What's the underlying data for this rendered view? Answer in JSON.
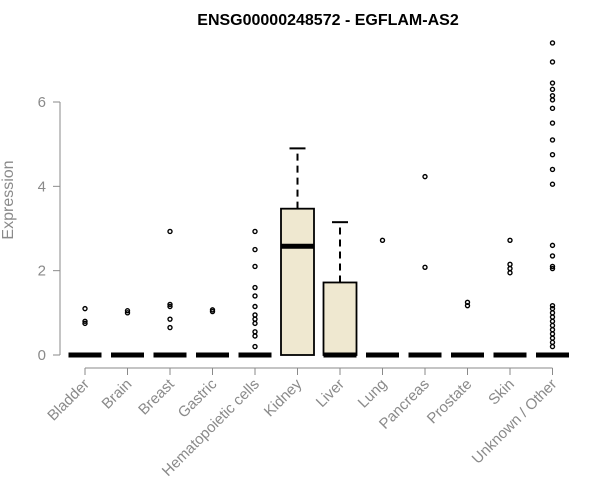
{
  "chart_data": {
    "type": "boxplot",
    "title": "ENSG00000248572 - EGFLAM-AS2",
    "xlabel": "",
    "ylabel": "Expression",
    "ylim": [
      0,
      7.5
    ],
    "yticks": [
      0,
      2,
      4,
      6
    ],
    "grid": false,
    "box_fill": "#efe8d0",
    "categories": [
      "Bladder",
      "Brain",
      "Breast",
      "Gastric",
      "Hematopoietic cells",
      "Kidney",
      "Liver",
      "Lung",
      "Pancreas",
      "Prostate",
      "Skin",
      "Unknown / Other"
    ],
    "boxes": [
      {
        "q1": 0,
        "median": 0,
        "q3": 0,
        "whisker_low": 0,
        "whisker_high": 0,
        "outliers": [
          0.75,
          0.8,
          1.1
        ]
      },
      {
        "q1": 0,
        "median": 0,
        "q3": 0,
        "whisker_low": 0,
        "whisker_high": 0,
        "outliers": [
          1.0,
          1.05
        ]
      },
      {
        "q1": 0,
        "median": 0,
        "q3": 0,
        "whisker_low": 0,
        "whisker_high": 0,
        "outliers": [
          0.65,
          0.85,
          1.15,
          1.2,
          2.93
        ]
      },
      {
        "q1": 0,
        "median": 0,
        "q3": 0,
        "whisker_low": 0,
        "whisker_high": 0,
        "outliers": [
          1.03,
          1.07
        ]
      },
      {
        "q1": 0,
        "median": 0,
        "q3": 0,
        "whisker_low": 0,
        "whisker_high": 0,
        "outliers": [
          0.2,
          0.45,
          0.55,
          0.75,
          0.85,
          0.95,
          1.15,
          1.4,
          1.6,
          2.1,
          2.5,
          2.93
        ]
      },
      {
        "q1": 0,
        "median": 2.58,
        "q3": 3.47,
        "whisker_low": 0,
        "whisker_high": 4.9,
        "outliers": []
      },
      {
        "q1": 0,
        "median": 0,
        "q3": 1.72,
        "whisker_low": 0,
        "whisker_high": 3.15,
        "outliers": []
      },
      {
        "q1": 0,
        "median": 0,
        "q3": 0,
        "whisker_low": 0,
        "whisker_high": 0,
        "outliers": [
          2.72
        ]
      },
      {
        "q1": 0,
        "median": 0,
        "q3": 0,
        "whisker_low": 0,
        "whisker_high": 0,
        "outliers": [
          2.08,
          4.23
        ]
      },
      {
        "q1": 0,
        "median": 0,
        "q3": 0,
        "whisker_low": 0,
        "whisker_high": 0,
        "outliers": [
          1.17,
          1.25
        ]
      },
      {
        "q1": 0,
        "median": 0,
        "q3": 0,
        "whisker_low": 0,
        "whisker_high": 0,
        "outliers": [
          1.95,
          2.05,
          2.15,
          2.72
        ]
      },
      {
        "q1": 0,
        "median": 0,
        "q3": 0,
        "whisker_low": 0,
        "whisker_high": 0,
        "outliers": [
          0.2,
          0.3,
          0.4,
          0.5,
          0.6,
          0.7,
          0.8,
          0.9,
          1.0,
          1.1,
          1.17,
          2.05,
          2.1,
          2.35,
          2.6,
          4.05,
          4.4,
          4.75,
          5.1,
          5.5,
          5.85,
          6.05,
          6.15,
          6.3,
          6.45,
          6.95,
          7.4
        ]
      }
    ]
  }
}
